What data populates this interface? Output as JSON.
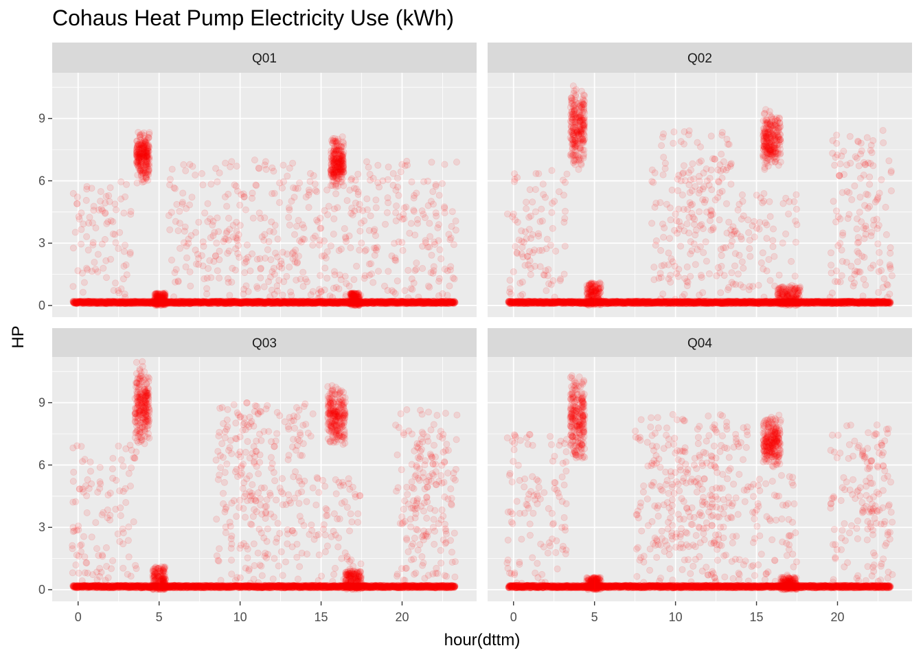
{
  "chart_data": {
    "type": "scatter",
    "title": "Cohaus Heat Pump Electricity Use (kWh)",
    "xlabel": "hour(dttm)",
    "ylabel": "HP",
    "xlim": [
      -1.6,
      24.6
    ],
    "ylim": [
      -0.56,
      11.2
    ],
    "x_ticks": [
      0,
      5,
      10,
      15,
      20
    ],
    "y_ticks": [
      0,
      3,
      6,
      9
    ],
    "grid": true,
    "point_color": "#ff0000",
    "point_alpha": 0.1,
    "facets": [
      {
        "label": "Q01",
        "baseline": 0.15,
        "clusters": [
          {
            "x": [
              3.6,
              4.4
            ],
            "y": [
              5.8,
              8.5
            ]
          },
          {
            "x": [
              15.6,
              16.4
            ],
            "y": [
              5.6,
              8.2
            ]
          }
        ],
        "bumps": [
          {
            "x": [
              4.7,
              5.4
            ],
            "y": [
              0.0,
              0.6
            ]
          },
          {
            "x": [
              16.8,
              17.4
            ],
            "y": [
              0.0,
              0.6
            ]
          }
        ],
        "scatter": [
          {
            "x": [
              -0.4,
              3.3
            ],
            "y": [
              0.3,
              6.0
            ]
          },
          {
            "x": [
              5.6,
              23.4
            ],
            "y": [
              0.3,
              7.0
            ]
          },
          {
            "x": [
              8.4,
              9.2
            ],
            "y": [
              2.8,
              3.6
            ]
          }
        ]
      },
      {
        "label": "Q02",
        "baseline": 0.15,
        "clusters": [
          {
            "x": [
              3.5,
              4.4
            ],
            "y": [
              6.5,
              10.7
            ]
          },
          {
            "x": [
              15.4,
              16.5
            ],
            "y": [
              6.5,
              9.5
            ]
          }
        ],
        "bumps": [
          {
            "x": [
              4.5,
              5.4
            ],
            "y": [
              0.0,
              1.1
            ]
          },
          {
            "x": [
              16.3,
              17.7
            ],
            "y": [
              0.0,
              0.9
            ]
          }
        ],
        "scatter": [
          {
            "x": [
              -0.4,
              3.3
            ],
            "y": [
              0.3,
              6.5
            ]
          },
          {
            "x": [
              8.5,
              13.5
            ],
            "y": [
              0.3,
              8.5
            ]
          },
          {
            "x": [
              10.3,
              12.4
            ],
            "y": [
              3.5,
              7.0
            ]
          },
          {
            "x": [
              13.5,
              17.5
            ],
            "y": [
              0.3,
              5.5
            ]
          },
          {
            "x": [
              19.5,
              23.4
            ],
            "y": [
              0.3,
              8.5
            ]
          },
          {
            "x": [
              21.4,
              22.4
            ],
            "y": [
              4.5,
              7.0
            ]
          }
        ]
      },
      {
        "label": "Q03",
        "baseline": 0.15,
        "clusters": [
          {
            "x": [
              3.5,
              4.4
            ],
            "y": [
              6.8,
              11.0
            ]
          },
          {
            "x": [
              15.4,
              16.5
            ],
            "y": [
              6.8,
              10.0
            ]
          }
        ],
        "bumps": [
          {
            "x": [
              4.6,
              5.4
            ],
            "y": [
              0.0,
              1.1
            ]
          },
          {
            "x": [
              16.5,
              17.5
            ],
            "y": [
              0.0,
              0.9
            ]
          }
        ],
        "scatter": [
          {
            "x": [
              -0.4,
              3.6
            ],
            "y": [
              0.3,
              7.0
            ]
          },
          {
            "x": [
              8.5,
              14.5
            ],
            "y": [
              0.3,
              9.0
            ]
          },
          {
            "x": [
              9.8,
              12.5
            ],
            "y": [
              3.5,
              8.5
            ]
          },
          {
            "x": [
              14.5,
              17.5
            ],
            "y": [
              0.3,
              5.5
            ]
          },
          {
            "x": [
              19.5,
              23.4
            ],
            "y": [
              0.3,
              9.0
            ]
          },
          {
            "x": [
              20.5,
              22.7
            ],
            "y": [
              2.0,
              7.5
            ]
          }
        ]
      },
      {
        "label": "Q04",
        "baseline": 0.15,
        "clusters": [
          {
            "x": [
              3.5,
              4.4
            ],
            "y": [
              6.0,
              10.5
            ]
          },
          {
            "x": [
              15.4,
              16.5
            ],
            "y": [
              5.8,
              8.5
            ]
          }
        ],
        "bumps": [
          {
            "x": [
              4.5,
              5.4
            ],
            "y": [
              0.0,
              0.6
            ]
          },
          {
            "x": [
              16.5,
              17.5
            ],
            "y": [
              0.0,
              0.6
            ]
          }
        ],
        "scatter": [
          {
            "x": [
              -0.4,
              3.3
            ],
            "y": [
              0.3,
              7.5
            ]
          },
          {
            "x": [
              7.5,
              14.5
            ],
            "y": [
              0.3,
              8.5
            ]
          },
          {
            "x": [
              8.5,
              13.0
            ],
            "y": [
              2.0,
              7.0
            ]
          },
          {
            "x": [
              14.5,
              17.5
            ],
            "y": [
              0.3,
              5.5
            ]
          },
          {
            "x": [
              19.5,
              23.4
            ],
            "y": [
              0.3,
              8.0
            ]
          },
          {
            "x": [
              21.5,
              23.2
            ],
            "y": [
              2.5,
              7.5
            ]
          }
        ]
      }
    ]
  }
}
